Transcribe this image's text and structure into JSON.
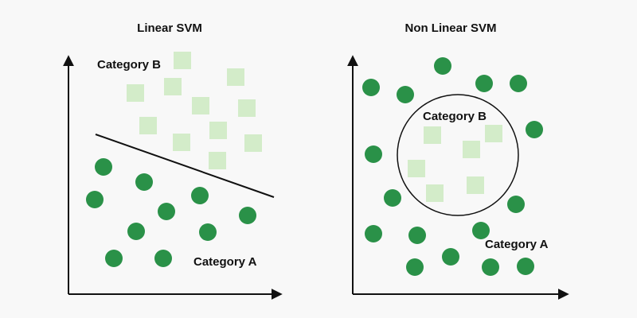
{
  "colors": {
    "background": "#f8f8f8",
    "category_a": "#2a9148",
    "category_b": "#d3ecc9",
    "axis": "#111111"
  },
  "panels": [
    {
      "title": "Linear SVM",
      "category_b_label": "Category B",
      "category_a_label": "Category A",
      "boundary": "line",
      "category_a_count": 10,
      "category_b_count": 11
    },
    {
      "title": "Non Linear SVM",
      "category_b_label": "Category B",
      "category_a_label": "Category A",
      "boundary": "circle",
      "category_a_count": 16,
      "category_b_count": 6
    }
  ]
}
